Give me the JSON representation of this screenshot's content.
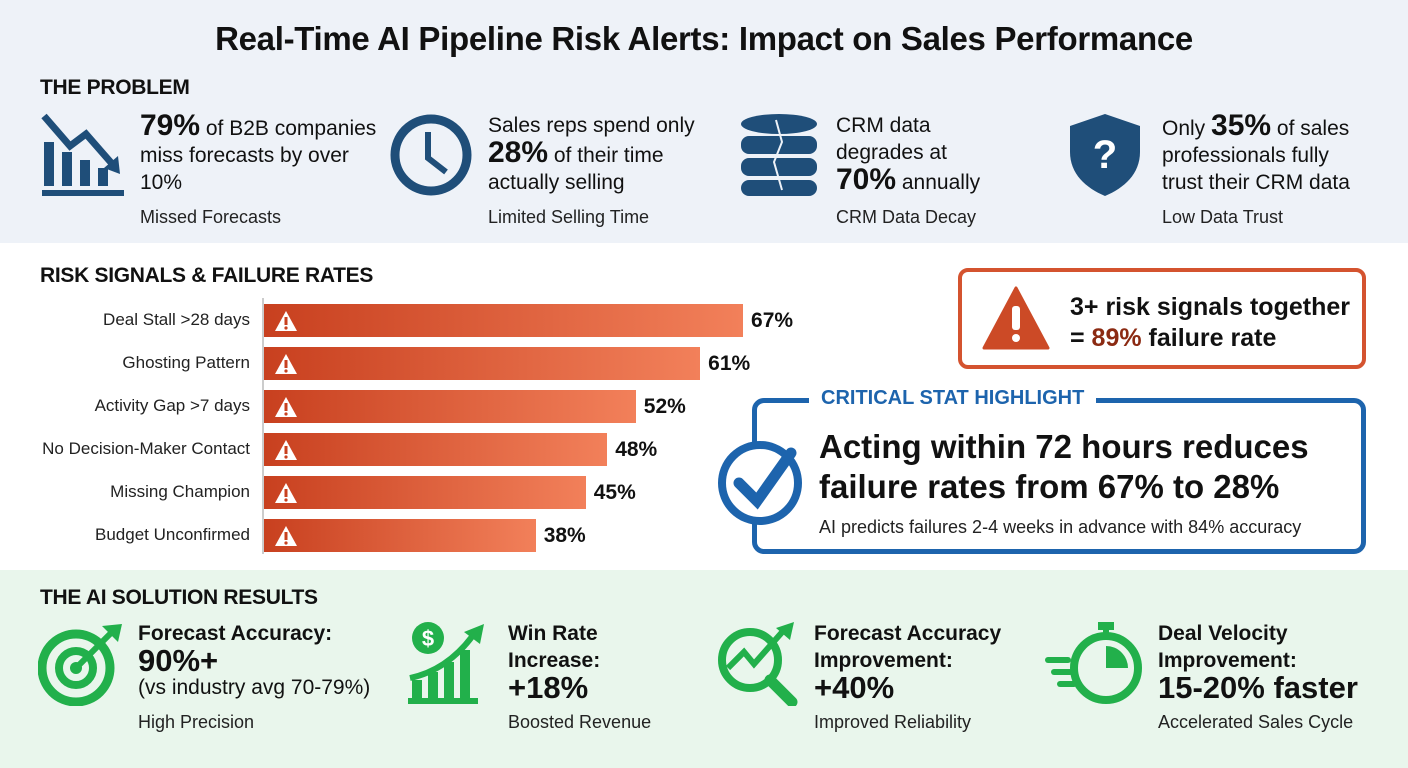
{
  "title": "Real-Time AI Pipeline Risk Alerts: Impact on Sales Performance",
  "problem": {
    "heading": "THE PROBLEM",
    "items": [
      {
        "icon": "declining-chart-icon",
        "big": "79%",
        "pre": "",
        "text": " of B2B companies miss forecasts by over 10%",
        "caption": "Missed Forecasts"
      },
      {
        "icon": "clock-icon",
        "pre": "Sales reps spend only ",
        "big": "28%",
        "text": " of their time actually selling",
        "caption": "Limited Selling Time"
      },
      {
        "icon": "cracked-database-icon",
        "pre": "CRM data degrades at ",
        "big": "70%",
        "text": " annually",
        "caption": "CRM Data Decay"
      },
      {
        "icon": "shield-question-icon",
        "pre": "Only ",
        "big": "35%",
        "text": " of sales professionals fully trust their CRM data",
        "caption": "Low Data Trust"
      }
    ]
  },
  "risk": {
    "heading": "RISK SIGNALS & FAILURE RATES"
  },
  "chart_data": {
    "type": "bar",
    "orientation": "horizontal",
    "categories": [
      "Deal Stall >28 days",
      "Ghosting Pattern",
      "Activity Gap >7 days",
      "No Decision-Maker Contact",
      "Missing Champion",
      "Budget Unconfirmed"
    ],
    "values": [
      67,
      61,
      52,
      48,
      45,
      38
    ],
    "labels": [
      "67%",
      "61%",
      "52%",
      "48%",
      "45%",
      "38%"
    ],
    "unit": "%",
    "bar_color": "#d9532f",
    "icon": "warning-icon"
  },
  "alert": {
    "line1": "3+ risk signals together",
    "pre": "= ",
    "highlight": "89%",
    "post": " failure rate",
    "highlight_color": "#8b2a12"
  },
  "critical": {
    "label": "CRITICAL STAT HIGHLIGHT",
    "main": "Acting within 72 hours reduces failure rates from 67% to 28%",
    "sub": "AI predicts failures 2-4 weeks in advance with 84% accuracy",
    "color": "#1d64ad"
  },
  "solution": {
    "heading": "THE AI SOLUTION RESULTS",
    "items": [
      {
        "icon": "target-arrow-icon",
        "head": "Forecast Accuracy:",
        "big": "90%+",
        "note": "(vs industry avg 70-79%)",
        "caption": "High Precision"
      },
      {
        "icon": "dollar-growth-chart-icon",
        "head": "Win Rate Increase:",
        "big": "+18%",
        "note": "",
        "caption": "Boosted Revenue"
      },
      {
        "icon": "magnifier-trend-icon",
        "head": "Forecast Accuracy Improvement:",
        "big": "+40%",
        "note": "",
        "caption": "Improved Reliability"
      },
      {
        "icon": "stopwatch-speed-icon",
        "head": "Deal Velocity Improvement:",
        "big": "15-20% faster",
        "note": "",
        "caption": "Accelerated Sales Cycle"
      }
    ],
    "color": "#22b04b"
  }
}
